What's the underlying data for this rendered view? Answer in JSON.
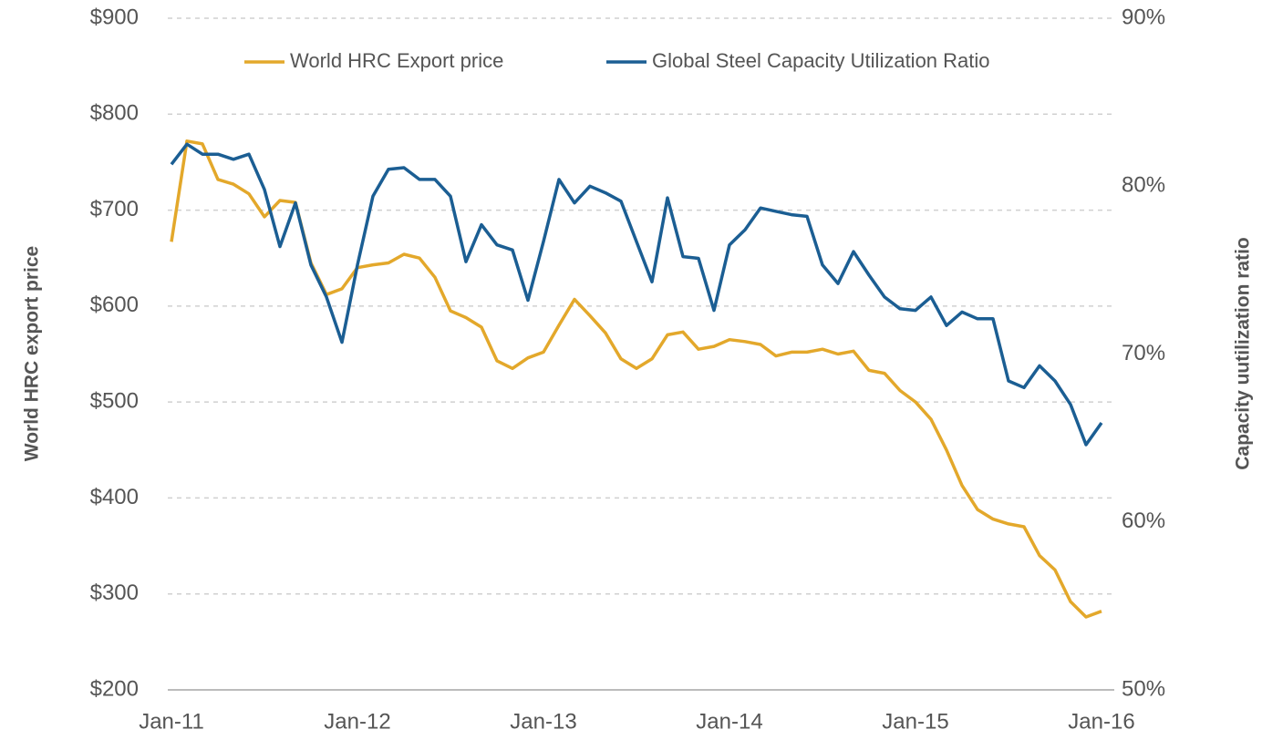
{
  "chart_data": {
    "type": "line",
    "categories": [
      "Jan-11",
      null,
      null,
      null,
      null,
      null,
      null,
      null,
      null,
      null,
      null,
      null,
      "Jan-12",
      null,
      null,
      null,
      null,
      null,
      null,
      null,
      null,
      null,
      null,
      null,
      "Jan-13",
      null,
      null,
      null,
      null,
      null,
      null,
      null,
      null,
      null,
      null,
      null,
      "Jan-14",
      null,
      null,
      null,
      null,
      null,
      null,
      null,
      null,
      null,
      null,
      null,
      "Jan-15",
      null,
      null,
      null,
      null,
      null,
      null,
      null,
      null,
      null,
      null,
      null,
      "Jan-16"
    ],
    "series": [
      {
        "name": "World HRC Export price",
        "color": "#e3a82b",
        "axis": "y",
        "values": [
          667,
          772,
          769,
          732,
          727,
          717,
          693,
          710,
          708,
          645,
          612,
          618,
          640,
          643,
          645,
          654,
          650,
          630,
          595,
          588,
          578,
          543,
          535,
          546,
          552,
          580,
          607,
          590,
          572,
          545,
          535,
          545,
          570,
          573,
          555,
          558,
          565,
          563,
          560,
          548,
          552,
          552,
          555,
          550,
          553,
          533,
          530,
          512,
          500,
          482,
          450,
          413,
          388,
          378,
          373,
          370,
          340,
          325,
          292,
          276,
          282
        ]
      },
      {
        "name": "Global Steel Capacity Utilization Ratio",
        "color": "#1b5e93",
        "axis": "y2",
        "values": [
          81.3,
          82.5,
          81.9,
          81.9,
          81.6,
          81.9,
          79.8,
          76.4,
          79.0,
          75.3,
          73.4,
          70.7,
          75.3,
          79.4,
          81.0,
          81.1,
          80.4,
          80.4,
          79.4,
          75.5,
          77.7,
          76.5,
          76.2,
          73.2,
          76.7,
          80.4,
          79.0,
          80.0,
          79.6,
          79.1,
          76.7,
          74.3,
          79.3,
          75.8,
          75.7,
          72.6,
          76.5,
          77.4,
          78.7,
          78.5,
          78.3,
          78.2,
          75.3,
          74.2,
          76.1,
          74.7,
          73.4,
          72.7,
          72.6,
          73.4,
          71.7,
          72.5,
          72.1,
          72.1,
          68.4,
          68.0,
          69.3,
          68.4,
          67.0,
          64.6,
          65.9
        ]
      }
    ],
    "ylabel": "World HRC export price",
    "y2label": "Capacity uutilization ratio",
    "ylim": [
      200,
      900
    ],
    "yticks": [
      {
        "value": 200,
        "label": "$200"
      },
      {
        "value": 300,
        "label": "$300"
      },
      {
        "value": 400,
        "label": "$400"
      },
      {
        "value": 500,
        "label": "$500"
      },
      {
        "value": 600,
        "label": "$600"
      },
      {
        "value": 700,
        "label": "$700"
      },
      {
        "value": 800,
        "label": "$800"
      },
      {
        "value": 900,
        "label": "$900"
      }
    ],
    "y2lim": [
      50,
      90
    ],
    "y2ticks": [
      {
        "value": 50,
        "label": "50%"
      },
      {
        "value": 60,
        "label": "60%"
      },
      {
        "value": 70,
        "label": "70%"
      },
      {
        "value": 80,
        "label": "80%"
      },
      {
        "value": 90,
        "label": "90%"
      }
    ],
    "grid": true,
    "legend": "top"
  }
}
